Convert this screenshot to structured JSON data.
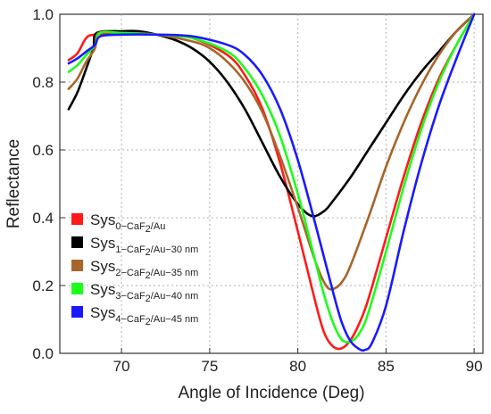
{
  "chart_data": {
    "type": "line",
    "xlabel": "Angle of Incidence (Deg)",
    "ylabel": "Reflectance",
    "xlim": [
      66.5,
      90.5
    ],
    "ylim": [
      0,
      1
    ],
    "xticks": [
      70,
      75,
      80,
      85,
      90
    ],
    "yticks": [
      0.0,
      0.2,
      0.4,
      0.6,
      0.8,
      1.0
    ],
    "xtick_labels": [
      "70",
      "75",
      "80",
      "85",
      "90"
    ],
    "ytick_labels": [
      "0.0",
      "0.2",
      "0.4",
      "0.6",
      "0.8",
      "1.0"
    ],
    "grid": true,
    "legend_position": "lower-left",
    "series": [
      {
        "name": "Sys0-CaF2/Au",
        "legend_main": "Sys",
        "legend_sub": "0−CaF",
        "legend_sub2": "2",
        "legend_sub3": "/Au",
        "color": "#ff1a1a",
        "x": [
          67,
          67.5,
          68,
          68.5,
          70,
          72,
          74,
          76,
          77,
          78,
          79,
          80,
          81,
          81.5,
          82,
          82.5,
          83,
          83.5,
          84,
          85,
          86,
          87,
          88,
          89,
          90
        ],
        "y": [
          0.865,
          0.885,
          0.93,
          0.94,
          0.945,
          0.94,
          0.93,
          0.88,
          0.82,
          0.72,
          0.56,
          0.36,
          0.15,
          0.06,
          0.02,
          0.015,
          0.04,
          0.09,
          0.16,
          0.34,
          0.52,
          0.68,
          0.81,
          0.91,
          1.0
        ]
      },
      {
        "name": "Sys1-CaF2/Au-30 nm",
        "legend_main": "Sys",
        "legend_sub": "1−CaF",
        "legend_sub2": "2",
        "legend_sub3": "/Au−30 nm",
        "color": "#000000",
        "x": [
          67,
          67.5,
          68,
          68.4,
          68.6,
          70,
          71,
          72,
          73,
          74,
          75,
          76,
          77,
          78,
          79,
          80,
          80.8,
          81.5,
          82,
          83,
          84,
          85,
          86,
          87,
          88,
          89,
          90
        ],
        "y": [
          0.72,
          0.77,
          0.84,
          0.9,
          0.945,
          0.95,
          0.95,
          0.94,
          0.925,
          0.9,
          0.86,
          0.8,
          0.72,
          0.62,
          0.52,
          0.44,
          0.405,
          0.42,
          0.45,
          0.52,
          0.6,
          0.68,
          0.76,
          0.83,
          0.89,
          0.95,
          1.0
        ]
      },
      {
        "name": "Sys2-CaF2/Au-35 nm",
        "legend_main": "Sys",
        "legend_sub": "2−CaF",
        "legend_sub2": "2",
        "legend_sub3": "/Au−35 nm",
        "color": "#a8652a",
        "x": [
          67,
          67.5,
          68,
          68.5,
          68.7,
          70,
          72,
          74,
          75,
          76,
          77,
          78,
          79,
          80,
          81,
          81.6,
          82,
          82.5,
          83,
          84,
          85,
          86,
          87,
          88,
          89,
          90
        ],
        "y": [
          0.78,
          0.81,
          0.86,
          0.9,
          0.945,
          0.945,
          0.94,
          0.92,
          0.9,
          0.86,
          0.8,
          0.71,
          0.58,
          0.43,
          0.27,
          0.2,
          0.19,
          0.21,
          0.26,
          0.4,
          0.55,
          0.68,
          0.79,
          0.88,
          0.95,
          1.0
        ]
      },
      {
        "name": "Sys3-CaF2/Au-40 nm",
        "legend_main": "Sys",
        "legend_sub": "3−CaF",
        "legend_sub2": "2",
        "legend_sub3": "/Au−40 nm",
        "color": "#1aff1a",
        "x": [
          67,
          67.5,
          68,
          68.5,
          68.8,
          70,
          72,
          74,
          76,
          77,
          78,
          79,
          80,
          81,
          81.5,
          82,
          82.5,
          83,
          83.5,
          84,
          85,
          86,
          87,
          88,
          89,
          90
        ],
        "y": [
          0.83,
          0.85,
          0.88,
          0.91,
          0.945,
          0.945,
          0.94,
          0.93,
          0.89,
          0.84,
          0.76,
          0.64,
          0.47,
          0.27,
          0.17,
          0.09,
          0.04,
          0.035,
          0.06,
          0.12,
          0.3,
          0.49,
          0.66,
          0.8,
          0.91,
          1.0
        ]
      },
      {
        "name": "Sys4-CaF2/Au-45 nm",
        "legend_main": "Sys",
        "legend_sub": "4−CaF",
        "legend_sub2": "2",
        "legend_sub3": "/Au−45 nm",
        "color": "#1a1aff",
        "x": [
          67,
          67.5,
          68,
          68.5,
          68.8,
          70,
          72,
          74,
          76,
          77,
          78,
          79,
          80,
          81,
          82,
          82.5,
          83,
          83.5,
          83.8,
          84.2,
          85,
          86,
          87,
          88,
          89,
          90
        ],
        "y": [
          0.855,
          0.87,
          0.89,
          0.91,
          0.935,
          0.94,
          0.94,
          0.935,
          0.91,
          0.88,
          0.82,
          0.72,
          0.57,
          0.38,
          0.18,
          0.09,
          0.035,
          0.012,
          0.01,
          0.03,
          0.14,
          0.36,
          0.56,
          0.73,
          0.87,
          1.0
        ]
      }
    ]
  }
}
